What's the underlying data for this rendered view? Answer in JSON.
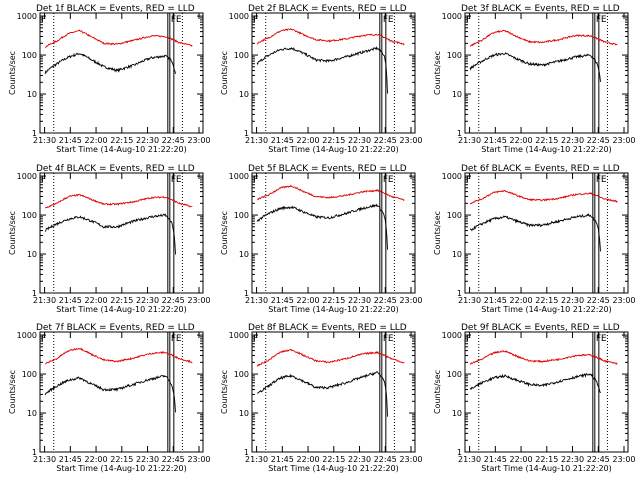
{
  "figure": {
    "xlabel": "Start Time (14-Aug-10 21:22:20)",
    "ylabel": "Counts/sec",
    "x_ticks": [
      "21:30",
      "21:45",
      "22:00",
      "22:15",
      "22:30",
      "22:45",
      "23:00"
    ],
    "y_ticks": [
      "1",
      "10",
      "100",
      "1000"
    ],
    "markers": {
      "start": "F",
      "end": "E"
    },
    "colors": {
      "events": "#000000",
      "lld": "#e00000"
    }
  },
  "chart_data": [
    {
      "type": "line",
      "title": "Det 1f BLACK = Events, RED = LLD",
      "xlabel": "Start Time (14-Aug-10 21:22:20)",
      "ylabel": "Counts/sec",
      "yscale": "log",
      "ylim": [
        1,
        1200
      ],
      "xlim_minutes_after_start": [
        5,
        100
      ],
      "series": [
        {
          "name": "Events",
          "color": "#000000",
          "x": [
            8,
            15,
            22,
            28,
            35,
            42,
            50,
            60,
            70,
            78,
            82,
            84
          ],
          "values": [
            35,
            60,
            90,
            110,
            75,
            50,
            40,
            55,
            85,
            95,
            70,
            30
          ]
        },
        {
          "name": "LLD",
          "color": "#e00000",
          "x": [
            8,
            15,
            22,
            28,
            35,
            42,
            50,
            60,
            70,
            78,
            86,
            94
          ],
          "values": [
            160,
            230,
            360,
            420,
            290,
            200,
            190,
            240,
            310,
            300,
            210,
            170
          ]
        }
      ]
    },
    {
      "type": "line",
      "title": "Det 2f BLACK = Events, RED = LLD",
      "xlabel": "Start Time (14-Aug-10 21:22:20)",
      "ylabel": "Counts/sec",
      "yscale": "log",
      "ylim": [
        1,
        1200
      ],
      "xlim_minutes_after_start": [
        5,
        100
      ],
      "series": [
        {
          "name": "Events",
          "color": "#000000",
          "x": [
            8,
            15,
            22,
            28,
            35,
            42,
            50,
            60,
            70,
            78,
            82,
            84
          ],
          "values": [
            60,
            100,
            140,
            150,
            110,
            75,
            70,
            90,
            120,
            150,
            100,
            8
          ]
        },
        {
          "name": "LLD",
          "color": "#e00000",
          "x": [
            8,
            15,
            22,
            28,
            35,
            42,
            50,
            60,
            70,
            78,
            86,
            94
          ],
          "values": [
            200,
            280,
            420,
            460,
            330,
            250,
            230,
            260,
            320,
            340,
            230,
            190
          ]
        }
      ]
    },
    {
      "type": "line",
      "title": "Det 3f BLACK = Events, RED = LLD",
      "xlabel": "Start Time (14-Aug-10 21:22:20)",
      "ylabel": "Counts/sec",
      "yscale": "log",
      "ylim": [
        1,
        1200
      ],
      "xlim_minutes_after_start": [
        5,
        100
      ],
      "series": [
        {
          "name": "Events",
          "color": "#000000",
          "x": [
            8,
            15,
            22,
            28,
            35,
            42,
            50,
            60,
            70,
            78,
            82,
            84
          ],
          "values": [
            45,
            70,
            100,
            110,
            80,
            60,
            55,
            70,
            90,
            100,
            60,
            20
          ]
        },
        {
          "name": "LLD",
          "color": "#e00000",
          "x": [
            8,
            15,
            22,
            28,
            35,
            42,
            50,
            60,
            70,
            78,
            86,
            94
          ],
          "values": [
            170,
            240,
            380,
            420,
            300,
            220,
            210,
            250,
            320,
            310,
            220,
            180
          ]
        }
      ]
    },
    {
      "type": "line",
      "title": "Det 4f BLACK = Events, RED = LLD",
      "xlabel": "Start Time (14-Aug-10 21:22:20)",
      "ylabel": "Counts/sec",
      "yscale": "log",
      "ylim": [
        1,
        1200
      ],
      "xlim_minutes_after_start": [
        5,
        100
      ],
      "series": [
        {
          "name": "Events",
          "color": "#000000",
          "x": [
            8,
            15,
            22,
            28,
            35,
            42,
            50,
            60,
            70,
            78,
            82,
            84
          ],
          "values": [
            40,
            60,
            80,
            90,
            70,
            50,
            50,
            70,
            90,
            100,
            60,
            8
          ]
        },
        {
          "name": "LLD",
          "color": "#e00000",
          "x": [
            8,
            15,
            22,
            28,
            35,
            42,
            50,
            60,
            70,
            78,
            86,
            94
          ],
          "values": [
            150,
            200,
            300,
            330,
            250,
            190,
            190,
            220,
            280,
            290,
            200,
            160
          ]
        }
      ]
    },
    {
      "type": "line",
      "title": "Det 5f BLACK = Events, RED = LLD",
      "xlabel": "Start Time (14-Aug-10 21:22:20)",
      "ylabel": "Counts/sec",
      "yscale": "log",
      "ylim": [
        1,
        1200
      ],
      "xlim_minutes_after_start": [
        5,
        100
      ],
      "series": [
        {
          "name": "Events",
          "color": "#000000",
          "x": [
            8,
            15,
            22,
            28,
            35,
            42,
            50,
            60,
            70,
            78,
            82,
            84
          ],
          "values": [
            70,
            110,
            150,
            160,
            120,
            90,
            85,
            110,
            150,
            180,
            100,
            10
          ]
        },
        {
          "name": "LLD",
          "color": "#e00000",
          "x": [
            8,
            15,
            22,
            28,
            35,
            42,
            50,
            60,
            70,
            78,
            86,
            94
          ],
          "values": [
            250,
            330,
            500,
            560,
            400,
            300,
            280,
            320,
            400,
            430,
            300,
            240
          ]
        }
      ]
    },
    {
      "type": "line",
      "title": "Det 6f BLACK = Events, RED = LLD",
      "xlabel": "Start Time (14-Aug-10 21:22:20)",
      "ylabel": "Counts/sec",
      "yscale": "log",
      "ylim": [
        1,
        1200
      ],
      "xlim_minutes_after_start": [
        5,
        100
      ],
      "series": [
        {
          "name": "Events",
          "color": "#000000",
          "x": [
            8,
            15,
            22,
            28,
            35,
            42,
            50,
            60,
            70,
            78,
            82,
            84
          ],
          "values": [
            40,
            60,
            80,
            90,
            70,
            55,
            55,
            70,
            90,
            100,
            60,
            10
          ]
        },
        {
          "name": "LLD",
          "color": "#e00000",
          "x": [
            8,
            15,
            22,
            28,
            35,
            42,
            50,
            60,
            70,
            78,
            86,
            94
          ],
          "values": [
            200,
            260,
            380,
            420,
            320,
            250,
            240,
            270,
            340,
            360,
            260,
            220
          ]
        }
      ]
    },
    {
      "type": "line",
      "title": "Det 7f BLACK = Events, RED = LLD",
      "xlabel": "Start Time (14-Aug-10 21:22:20)",
      "ylabel": "Counts/sec",
      "yscale": "log",
      "ylim": [
        1,
        1200
      ],
      "xlim_minutes_after_start": [
        5,
        100
      ],
      "series": [
        {
          "name": "Events",
          "color": "#000000",
          "x": [
            8,
            15,
            22,
            28,
            35,
            42,
            50,
            60,
            70,
            78,
            82,
            84
          ],
          "values": [
            30,
            50,
            70,
            80,
            55,
            40,
            40,
            55,
            75,
            90,
            50,
            10
          ]
        },
        {
          "name": "LLD",
          "color": "#e00000",
          "x": [
            8,
            15,
            22,
            28,
            35,
            42,
            50,
            60,
            70,
            78,
            86,
            94
          ],
          "values": [
            180,
            250,
            400,
            460,
            320,
            230,
            210,
            260,
            340,
            360,
            250,
            200
          ]
        }
      ]
    },
    {
      "type": "line",
      "title": "Det 8f BLACK = Events, RED = LLD",
      "xlabel": "Start Time (14-Aug-10 21:22:20)",
      "ylabel": "Counts/sec",
      "yscale": "log",
      "ylim": [
        1,
        1200
      ],
      "xlim_minutes_after_start": [
        5,
        100
      ],
      "series": [
        {
          "name": "Events",
          "color": "#000000",
          "x": [
            8,
            15,
            22,
            28,
            35,
            42,
            50,
            60,
            70,
            78,
            82,
            84
          ],
          "values": [
            30,
            50,
            80,
            90,
            65,
            45,
            45,
            60,
            85,
            110,
            70,
            6
          ]
        },
        {
          "name": "LLD",
          "color": "#e00000",
          "x": [
            8,
            15,
            22,
            28,
            35,
            42,
            50,
            60,
            70,
            78,
            86,
            94
          ],
          "values": [
            160,
            230,
            370,
            420,
            300,
            220,
            200,
            250,
            330,
            360,
            250,
            190
          ]
        }
      ]
    },
    {
      "type": "line",
      "title": "Det 9f BLACK = Events, RED = LLD",
      "xlabel": "Start Time (14-Aug-10 21:22:20)",
      "ylabel": "Counts/sec",
      "yscale": "log",
      "ylim": [
        1,
        1200
      ],
      "xlim_minutes_after_start": [
        5,
        100
      ],
      "series": [
        {
          "name": "Events",
          "color": "#000000",
          "x": [
            8,
            15,
            22,
            28,
            35,
            42,
            50,
            60,
            70,
            78,
            82,
            84
          ],
          "values": [
            40,
            60,
            80,
            90,
            70,
            55,
            50,
            65,
            85,
            100,
            60,
            30
          ]
        },
        {
          "name": "LLD",
          "color": "#e00000",
          "x": [
            8,
            15,
            22,
            28,
            35,
            42,
            50,
            60,
            70,
            78,
            86,
            94
          ],
          "values": [
            180,
            240,
            350,
            390,
            290,
            220,
            210,
            240,
            300,
            310,
            220,
            180
          ]
        }
      ]
    }
  ]
}
